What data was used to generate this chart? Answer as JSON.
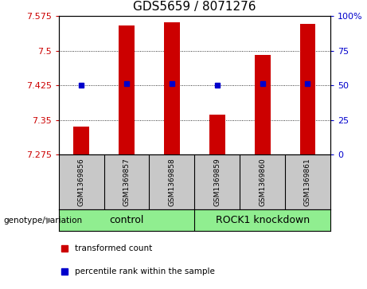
{
  "title": "GDS5659 / 8071276",
  "samples": [
    "GSM1369856",
    "GSM1369857",
    "GSM1369858",
    "GSM1369859",
    "GSM1369860",
    "GSM1369861"
  ],
  "bar_values": [
    7.335,
    7.555,
    7.562,
    7.362,
    7.49,
    7.558
  ],
  "dot_values": [
    7.425,
    7.428,
    7.428,
    7.425,
    7.428,
    7.428
  ],
  "ylim_left": [
    7.275,
    7.575
  ],
  "yticks_left": [
    7.275,
    7.35,
    7.425,
    7.5,
    7.575
  ],
  "yticks_right": [
    0,
    25,
    50,
    75,
    100
  ],
  "bar_color": "#cc0000",
  "dot_color": "#0000cc",
  "background_samples": "#c8c8c8",
  "background_group": "#90ee90",
  "group_label": "genotype/variation",
  "group_names": [
    "control",
    "ROCK1 knockdown"
  ],
  "legend_bar": "transformed count",
  "legend_dot": "percentile rank within the sample",
  "title_fontsize": 11,
  "tick_fontsize": 8,
  "sample_fontsize": 6.5,
  "group_fontsize": 9,
  "legend_fontsize": 7.5
}
